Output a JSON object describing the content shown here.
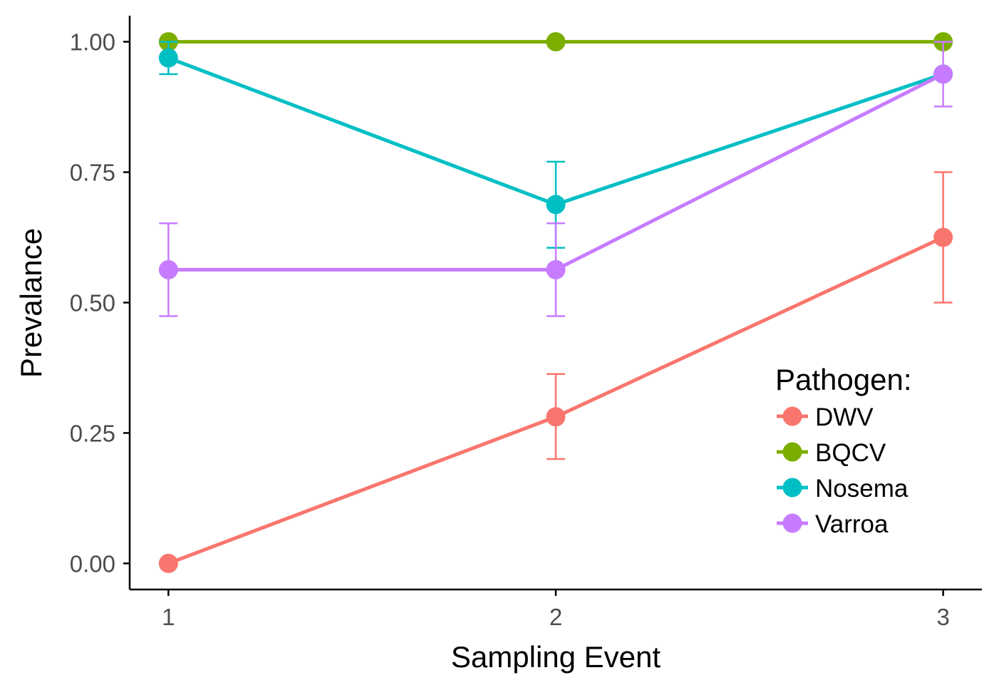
{
  "chart_data": {
    "type": "line",
    "xlabel": "Sampling Event",
    "ylabel": "Prevalance",
    "x": [
      1,
      2,
      3
    ],
    "x_ticks": [
      "1",
      "2",
      "3"
    ],
    "xlim": [
      0.9,
      3.1
    ],
    "ylim": [
      -0.05,
      1.05
    ],
    "y_ticks": [
      "0.00",
      "0.25",
      "0.50",
      "0.75",
      "1.00"
    ],
    "grid": false,
    "error_bars": true,
    "legend": {
      "title": "Pathogen:",
      "position": "right-bottom (inside)"
    },
    "series": [
      {
        "name": "DWV",
        "color": "#f8766d",
        "values": [
          0.0,
          0.281,
          0.625
        ],
        "lower": [
          null,
          0.2,
          0.5
        ],
        "upper": [
          null,
          0.363,
          0.75
        ]
      },
      {
        "name": "BQCV",
        "color": "#7cae00",
        "values": [
          1.0,
          1.0,
          1.0
        ],
        "lower": [
          null,
          null,
          null
        ],
        "upper": [
          null,
          null,
          null
        ]
      },
      {
        "name": "Nosema",
        "color": "#00bfc4",
        "values": [
          0.969,
          0.688,
          0.938
        ],
        "lower": [
          0.938,
          0.605,
          null
        ],
        "upper": [
          1.0,
          0.77,
          null
        ]
      },
      {
        "name": "Varroa",
        "color": "#c77cff",
        "values": [
          0.563,
          0.563,
          0.938
        ],
        "lower": [
          0.474,
          0.474,
          0.876
        ],
        "upper": [
          0.652,
          0.652,
          1.0
        ]
      }
    ]
  }
}
